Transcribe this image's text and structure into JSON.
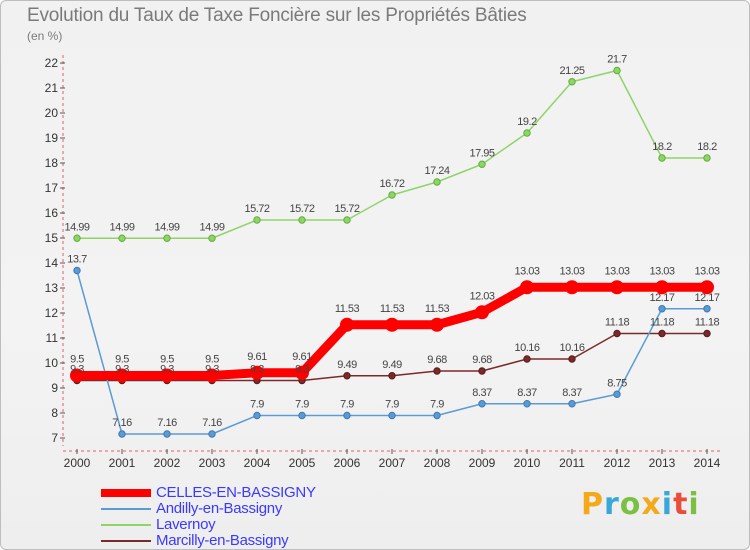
{
  "header": {
    "title": "Evolution du Taux de Taxe Foncière sur les Propriétés Bâties",
    "unit": "(en %)"
  },
  "brand": {
    "letters": [
      "P",
      "r",
      "o",
      "x",
      "i",
      "t",
      "i"
    ],
    "colors": [
      "#f4a91a",
      "#3aa7d9",
      "#7bc043",
      "#f4a91a",
      "#3aa7d9",
      "#e94e3c",
      "#7bc043"
    ]
  },
  "chart_data": {
    "type": "line",
    "x": [
      "2000",
      "2001",
      "2002",
      "2003",
      "2004",
      "2005",
      "2006",
      "2007",
      "2008",
      "2009",
      "2010",
      "2011",
      "2012",
      "2013",
      "2014"
    ],
    "ylim": [
      7,
      22
    ],
    "yticks": [
      "7",
      "8",
      "9",
      "10",
      "11",
      "12",
      "13",
      "14",
      "15",
      "16",
      "17",
      "18",
      "19",
      "20",
      "21",
      "22"
    ],
    "grid": false,
    "legend_position": "bottom-left",
    "series": [
      {
        "name": "CELLES-EN-BASSIGNY",
        "color": "#ff0000",
        "values": [
          9.5,
          9.5,
          9.5,
          9.5,
          9.61,
          9.61,
          11.53,
          11.53,
          11.53,
          12.03,
          13.03,
          13.03,
          13.03,
          13.03,
          13.03
        ],
        "labels": [
          "9.5",
          "9.5",
          "9.5",
          "9.5",
          "9.61",
          "9.61",
          "11.53",
          "11.53",
          "11.53",
          "12.03",
          "13.03",
          "13.03",
          "13.03",
          "13.03",
          "13.03"
        ]
      },
      {
        "name": "Andilly-en-Bassigny",
        "color": "#5b9bd5",
        "values": [
          13.7,
          7.16,
          7.16,
          7.16,
          7.9,
          7.9,
          7.9,
          7.9,
          7.9,
          8.37,
          8.37,
          8.37,
          8.75,
          12.17,
          12.17
        ],
        "labels": [
          "13.7",
          "7.16",
          "7.16",
          "7.16",
          "7.9",
          "7.9",
          "7.9",
          "7.9",
          "7.9",
          "8.37",
          "8.37",
          "8.37",
          "8.75",
          "12.17",
          "12.17"
        ]
      },
      {
        "name": "Lavernoy",
        "color": "#8ed468",
        "values": [
          14.99,
          14.99,
          14.99,
          14.99,
          15.72,
          15.72,
          15.72,
          16.72,
          17.24,
          17.95,
          19.2,
          21.25,
          21.7,
          18.2,
          18.2
        ],
        "labels": [
          "14.99",
          "14.99",
          "14.99",
          "14.99",
          "15.72",
          "15.72",
          "15.72",
          "16.72",
          "17.24",
          "17.95",
          "19.2",
          "21.25",
          "21.7",
          "18.2",
          "18.2"
        ]
      },
      {
        "name": "Marcilly-en-Bassigny",
        "color": "#7a2a2a",
        "values": [
          9.3,
          9.3,
          9.3,
          9.3,
          9.3,
          9.3,
          9.49,
          9.49,
          9.68,
          9.68,
          10.16,
          10.16,
          11.18,
          11.18,
          11.18
        ],
        "labels": [
          "9.3",
          "9.3",
          "9.3",
          "9.3",
          "9.3",
          "9.3",
          "9.49",
          "9.49",
          "9.68",
          "9.68",
          "10.16",
          "10.16",
          "11.18",
          "11.18",
          "11.18"
        ]
      }
    ]
  }
}
